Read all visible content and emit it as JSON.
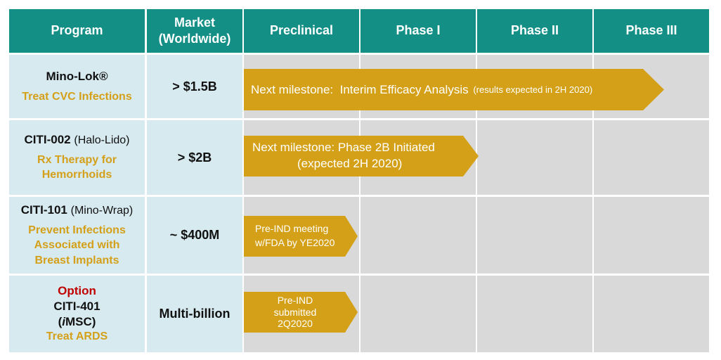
{
  "headers": {
    "program": "Program",
    "market_line1": "Market",
    "market_line2": "(Worldwide)",
    "preclinical": "Preclinical",
    "phase1": "Phase I",
    "phase2": "Phase II",
    "phase3": "Phase III"
  },
  "rows": [
    {
      "name": "Mino-Lok®",
      "indication": "Treat CVC Infections",
      "market": "> $1.5B",
      "milestone_label": "Next milestone:",
      "milestone_text": "Interim Efficacy Analysis",
      "milestone_note": "(results expected in 2H 2020)"
    },
    {
      "name": "CITI-002",
      "name_suffix": "(Halo-Lido)",
      "indication_line1": "Rx Therapy for",
      "indication_line2": "Hemorrhoids",
      "market": "> $2B",
      "milestone_label": "Next milestone:",
      "milestone_text": "Phase 2B Initiated",
      "milestone_note": "(expected 2H 2020)"
    },
    {
      "name": "CITI-101",
      "name_suffix": "(Mino-Wrap)",
      "indication_line1": "Prevent Infections",
      "indication_line2": "Associated with",
      "indication_line3": "Breast Implants",
      "market": "~ $400M",
      "milestone_line1": "Pre-IND meeting",
      "milestone_line2": "w/FDA by YE2020"
    },
    {
      "option": "Option",
      "name": "CITI-401",
      "name_line2_prefix": "(",
      "name_line2_italic": "i",
      "name_line2_rest": "MSC)",
      "indication": "Treat ARDS",
      "market": "Multi-billion",
      "milestone_line1": "Pre-IND",
      "milestone_line2": "submitted",
      "milestone_line3": "2Q2020"
    }
  ],
  "colors": {
    "header_bg": "#138F86",
    "program_bg": "#D7EAF0",
    "phase_bg": "#D9D9D9",
    "arrow": "#D4A017",
    "indication_text": "#D4A019",
    "option_text": "#C00000"
  }
}
